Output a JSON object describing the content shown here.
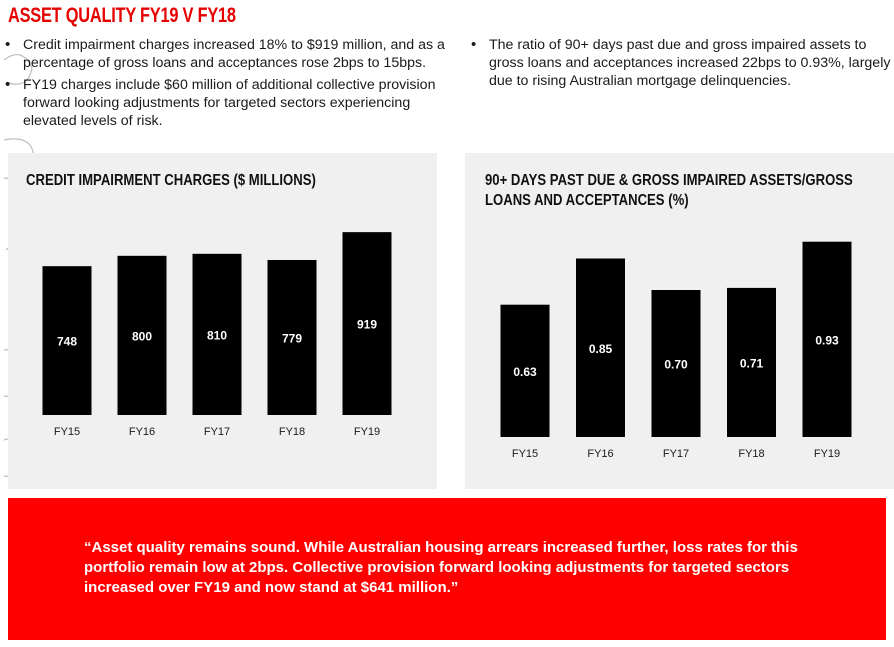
{
  "page": {
    "title": "ASSET QUALITY FY19 V FY18"
  },
  "bullets_left": [
    "Credit impairment charges increased 18% to $919 million, and as a percentage of gross loans and acceptances rose 2bps to 15bps.",
    "FY19 charges include $60 million of additional collective provision forward looking adjustments for targeted sectors experiencing elevated levels of risk."
  ],
  "bullets_right": [
    "The ratio of 90+ days past due and gross impaired assets to gross loans and acceptances increased 22bps to 0.93%, largely due to rising Australian mortgage delinquencies."
  ],
  "colors": {
    "accent": "#e60000",
    "quote_bg": "#ff0000",
    "bar": "#000000",
    "panel": "#f0f0f0"
  },
  "chart_data": [
    {
      "type": "bar",
      "title": "CREDIT IMPAIRMENT CHARGES ($ MILLIONS)",
      "categories": [
        "FY15",
        "FY16",
        "FY17",
        "FY18",
        "FY19"
      ],
      "values": [
        748,
        800,
        810,
        779,
        919
      ],
      "value_labels": [
        "748",
        "800",
        "810",
        "779",
        "919"
      ],
      "xlabel": "",
      "ylabel": "",
      "ylim": [
        0,
        980
      ],
      "grid": false,
      "legend": "none"
    },
    {
      "type": "bar",
      "title": "90+ DAYS PAST DUE & GROSS IMPAIRED ASSETS/GROSS LOANS AND ACCEPTANCES (%)",
      "categories": [
        "FY15",
        "FY16",
        "FY17",
        "FY18",
        "FY19"
      ],
      "values": [
        0.63,
        0.85,
        0.7,
        0.71,
        0.93
      ],
      "value_labels": [
        "0.63",
        "0.85",
        "0.70",
        "0.71",
        "0.93"
      ],
      "xlabel": "",
      "ylabel": "",
      "ylim": [
        0,
        1.0
      ],
      "grid": false,
      "legend": "none"
    }
  ],
  "quote": {
    "text": "“Asset quality remains sound. While Australian housing arrears increased further, loss rates for this portfolio remain low at 2bps. Collective provision forward looking adjustments for targeted sectors increased over FY19 and now stand at $641 million.”"
  }
}
